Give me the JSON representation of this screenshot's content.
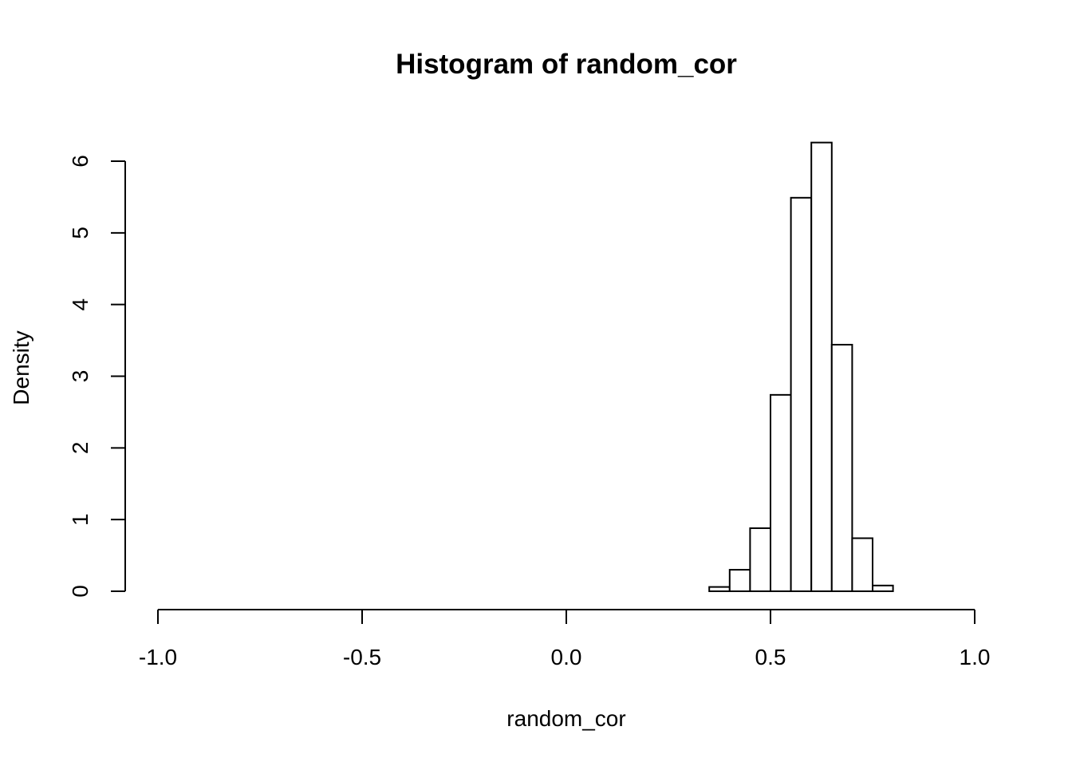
{
  "chart_data": {
    "type": "bar",
    "title": "Histogram of random_cor",
    "xlabel": "random_cor",
    "ylabel": "Density",
    "xlim": [
      -1.0,
      1.0
    ],
    "ylim": [
      0,
      6
    ],
    "x_ticks": [
      -1.0,
      -0.5,
      0.0,
      0.5,
      1.0
    ],
    "x_tick_labels": [
      "-1.0",
      "-0.5",
      "0.0",
      "0.5",
      "1.0"
    ],
    "y_ticks": [
      0,
      1,
      2,
      3,
      4,
      5,
      6
    ],
    "y_tick_labels": [
      "0",
      "1",
      "2",
      "3",
      "4",
      "5",
      "6"
    ],
    "bin_width": 0.05,
    "bins": [
      {
        "x0": 0.35,
        "x1": 0.4,
        "density": 0.06
      },
      {
        "x0": 0.4,
        "x1": 0.45,
        "density": 0.3
      },
      {
        "x0": 0.45,
        "x1": 0.5,
        "density": 0.88
      },
      {
        "x0": 0.5,
        "x1": 0.55,
        "density": 2.74
      },
      {
        "x0": 0.55,
        "x1": 0.6,
        "density": 5.49
      },
      {
        "x0": 0.6,
        "x1": 0.65,
        "density": 6.26
      },
      {
        "x0": 0.65,
        "x1": 0.7,
        "density": 3.44
      },
      {
        "x0": 0.7,
        "x1": 0.75,
        "density": 0.74
      },
      {
        "x0": 0.75,
        "x1": 0.8,
        "density": 0.08
      }
    ],
    "grid": false,
    "bar_fill": "#ffffff",
    "bar_stroke": "#000000"
  }
}
